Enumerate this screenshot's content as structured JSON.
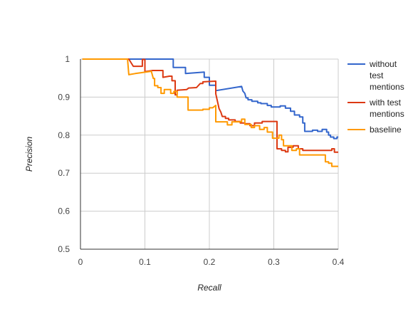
{
  "chart_data": {
    "type": "line",
    "title": "",
    "xlabel": "Recall",
    "ylabel": "Precision",
    "xlim": [
      0,
      0.4
    ],
    "ylim": [
      0.5,
      1
    ],
    "x_ticks": [
      "0",
      "0.1",
      "0.2",
      "0.3",
      "0.4"
    ],
    "y_ticks": [
      "0.5",
      "0.6",
      "0.7",
      "0.8",
      "0.9",
      "1"
    ],
    "grid": true,
    "legend_position": "right",
    "series": [
      {
        "name": "without test mentions",
        "color": "#3366cc",
        "points": [
          [
            0.003,
            1.0
          ],
          [
            0.144,
            1.0
          ],
          [
            0.144,
            0.978
          ],
          [
            0.163,
            0.978
          ],
          [
            0.163,
            0.962
          ],
          [
            0.192,
            0.966
          ],
          [
            0.192,
            0.952
          ],
          [
            0.2,
            0.952
          ],
          [
            0.2,
            0.931
          ],
          [
            0.21,
            0.931
          ],
          [
            0.21,
            0.917
          ],
          [
            0.25,
            0.928
          ],
          [
            0.252,
            0.916
          ],
          [
            0.255,
            0.91
          ],
          [
            0.257,
            0.898
          ],
          [
            0.26,
            0.898
          ],
          [
            0.26,
            0.893
          ],
          [
            0.266,
            0.893
          ],
          [
            0.266,
            0.889
          ],
          [
            0.275,
            0.889
          ],
          [
            0.275,
            0.885
          ],
          [
            0.28,
            0.885
          ],
          [
            0.28,
            0.883
          ],
          [
            0.29,
            0.883
          ],
          [
            0.29,
            0.878
          ],
          [
            0.296,
            0.878
          ],
          [
            0.296,
            0.874
          ],
          [
            0.31,
            0.874
          ],
          [
            0.31,
            0.877
          ],
          [
            0.318,
            0.877
          ],
          [
            0.318,
            0.871
          ],
          [
            0.326,
            0.871
          ],
          [
            0.326,
            0.863
          ],
          [
            0.332,
            0.863
          ],
          [
            0.332,
            0.853
          ],
          [
            0.34,
            0.853
          ],
          [
            0.34,
            0.848
          ],
          [
            0.345,
            0.848
          ],
          [
            0.345,
            0.832
          ],
          [
            0.348,
            0.832
          ],
          [
            0.348,
            0.81
          ],
          [
            0.36,
            0.81
          ],
          [
            0.36,
            0.813
          ],
          [
            0.368,
            0.813
          ],
          [
            0.368,
            0.81
          ],
          [
            0.375,
            0.81
          ],
          [
            0.375,
            0.815
          ],
          [
            0.382,
            0.815
          ],
          [
            0.382,
            0.808
          ],
          [
            0.385,
            0.808
          ],
          [
            0.385,
            0.8
          ],
          [
            0.388,
            0.8
          ],
          [
            0.388,
            0.795
          ],
          [
            0.393,
            0.795
          ],
          [
            0.393,
            0.791
          ],
          [
            0.398,
            0.791
          ],
          [
            0.398,
            0.795
          ],
          [
            0.4,
            0.795
          ]
        ]
      },
      {
        "name": "with test mentions",
        "color": "#dc3912",
        "points": [
          [
            0.003,
            1.0
          ],
          [
            0.075,
            1.0
          ],
          [
            0.082,
            0.981
          ],
          [
            0.096,
            0.981
          ],
          [
            0.096,
            0.999
          ],
          [
            0.1,
            0.999
          ],
          [
            0.1,
            0.967
          ],
          [
            0.112,
            0.97
          ],
          [
            0.128,
            0.97
          ],
          [
            0.128,
            0.952
          ],
          [
            0.138,
            0.955
          ],
          [
            0.142,
            0.955
          ],
          [
            0.142,
            0.943
          ],
          [
            0.147,
            0.943
          ],
          [
            0.147,
            0.906
          ],
          [
            0.15,
            0.906
          ],
          [
            0.15,
            0.918
          ],
          [
            0.165,
            0.92
          ],
          [
            0.168,
            0.924
          ],
          [
            0.18,
            0.925
          ],
          [
            0.186,
            0.936
          ],
          [
            0.19,
            0.936
          ],
          [
            0.19,
            0.94
          ],
          [
            0.198,
            0.941
          ],
          [
            0.21,
            0.942
          ],
          [
            0.21,
            0.909
          ],
          [
            0.215,
            0.87
          ],
          [
            0.218,
            0.86
          ],
          [
            0.22,
            0.849
          ],
          [
            0.225,
            0.849
          ],
          [
            0.225,
            0.844
          ],
          [
            0.23,
            0.844
          ],
          [
            0.23,
            0.84
          ],
          [
            0.24,
            0.84
          ],
          [
            0.24,
            0.836
          ],
          [
            0.248,
            0.836
          ],
          [
            0.248,
            0.832
          ],
          [
            0.255,
            0.832
          ],
          [
            0.255,
            0.83
          ],
          [
            0.263,
            0.83
          ],
          [
            0.263,
            0.825
          ],
          [
            0.27,
            0.825
          ],
          [
            0.27,
            0.832
          ],
          [
            0.282,
            0.832
          ],
          [
            0.282,
            0.836
          ],
          [
            0.305,
            0.836
          ],
          [
            0.305,
            0.764
          ],
          [
            0.312,
            0.764
          ],
          [
            0.312,
            0.76
          ],
          [
            0.318,
            0.76
          ],
          [
            0.318,
            0.756
          ],
          [
            0.322,
            0.756
          ],
          [
            0.322,
            0.768
          ],
          [
            0.33,
            0.768
          ],
          [
            0.33,
            0.772
          ],
          [
            0.338,
            0.772
          ],
          [
            0.338,
            0.764
          ],
          [
            0.345,
            0.764
          ],
          [
            0.345,
            0.76
          ],
          [
            0.39,
            0.76
          ],
          [
            0.39,
            0.764
          ],
          [
            0.394,
            0.764
          ],
          [
            0.394,
            0.755
          ],
          [
            0.4,
            0.755
          ]
        ]
      },
      {
        "name": "baseline",
        "color": "#ff9900",
        "points": [
          [
            0.003,
            1.0
          ],
          [
            0.073,
            1.0
          ],
          [
            0.075,
            0.959
          ],
          [
            0.085,
            0.962
          ],
          [
            0.093,
            0.964
          ],
          [
            0.11,
            0.968
          ],
          [
            0.113,
            0.949
          ],
          [
            0.115,
            0.949
          ],
          [
            0.115,
            0.93
          ],
          [
            0.12,
            0.93
          ],
          [
            0.12,
            0.925
          ],
          [
            0.125,
            0.925
          ],
          [
            0.125,
            0.91
          ],
          [
            0.13,
            0.91
          ],
          [
            0.13,
            0.92
          ],
          [
            0.14,
            0.92
          ],
          [
            0.14,
            0.91
          ],
          [
            0.145,
            0.91
          ],
          [
            0.145,
            0.915
          ],
          [
            0.15,
            0.915
          ],
          [
            0.15,
            0.9
          ],
          [
            0.167,
            0.9
          ],
          [
            0.167,
            0.866
          ],
          [
            0.19,
            0.866
          ],
          [
            0.19,
            0.868
          ],
          [
            0.2,
            0.868
          ],
          [
            0.2,
            0.872
          ],
          [
            0.205,
            0.872
          ],
          [
            0.21,
            0.878
          ],
          [
            0.21,
            0.835
          ],
          [
            0.228,
            0.835
          ],
          [
            0.228,
            0.827
          ],
          [
            0.235,
            0.827
          ],
          [
            0.235,
            0.835
          ],
          [
            0.25,
            0.835
          ],
          [
            0.25,
            0.842
          ],
          [
            0.255,
            0.842
          ],
          [
            0.255,
            0.828
          ],
          [
            0.265,
            0.828
          ],
          [
            0.265,
            0.82
          ],
          [
            0.27,
            0.82
          ],
          [
            0.27,
            0.825
          ],
          [
            0.278,
            0.825
          ],
          [
            0.278,
            0.815
          ],
          [
            0.285,
            0.815
          ],
          [
            0.285,
            0.82
          ],
          [
            0.29,
            0.82
          ],
          [
            0.29,
            0.808
          ],
          [
            0.298,
            0.808
          ],
          [
            0.298,
            0.792
          ],
          [
            0.308,
            0.792
          ],
          [
            0.308,
            0.8
          ],
          [
            0.312,
            0.8
          ],
          [
            0.312,
            0.788
          ],
          [
            0.315,
            0.788
          ],
          [
            0.315,
            0.772
          ],
          [
            0.328,
            0.772
          ],
          [
            0.328,
            0.76
          ],
          [
            0.335,
            0.76
          ],
          [
            0.335,
            0.764
          ],
          [
            0.34,
            0.764
          ],
          [
            0.34,
            0.748
          ],
          [
            0.38,
            0.748
          ],
          [
            0.38,
            0.73
          ],
          [
            0.385,
            0.73
          ],
          [
            0.385,
            0.726
          ],
          [
            0.39,
            0.726
          ],
          [
            0.39,
            0.718
          ],
          [
            0.4,
            0.718
          ]
        ]
      }
    ],
    "legend": [
      {
        "lines": [
          "without",
          "test",
          "mentions"
        ],
        "color": "#3366cc"
      },
      {
        "lines": [
          "with test",
          "mentions"
        ],
        "color": "#dc3912"
      },
      {
        "lines": [
          "baseline"
        ],
        "color": "#ff9900"
      }
    ]
  }
}
